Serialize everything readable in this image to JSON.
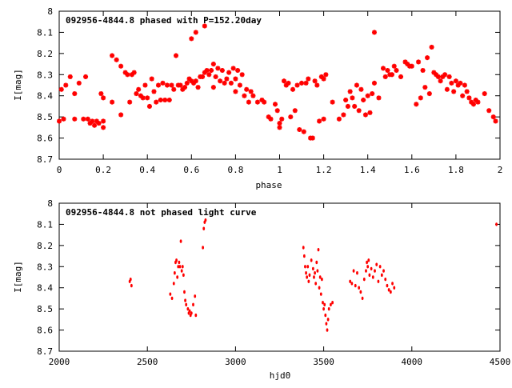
{
  "chart_data": [
    {
      "type": "scatter",
      "title": "092956-4844.8 phased with P=152.20day",
      "xlabel": "phase",
      "ylabel": "I[mag]",
      "xlim": [
        0,
        2
      ],
      "ylim": [
        8.7,
        8
      ],
      "y_inverted": true,
      "xticks": [
        0,
        0.2,
        0.4,
        0.6,
        0.8,
        1,
        1.2,
        1.4,
        1.6,
        1.8,
        2
      ],
      "xtick_labels": [
        "0",
        "0.2",
        "0.4",
        "0.6",
        "0.8",
        "1",
        "1.2",
        "1.4",
        "1.6",
        "1.8",
        "2"
      ],
      "yticks": [
        8,
        8.1,
        8.2,
        8.3,
        8.4,
        8.5,
        8.6,
        8.7
      ],
      "ytick_labels": [
        "8",
        "8.1",
        "8.2",
        "8.3",
        "8.4",
        "8.5",
        "8.6",
        "8.7"
      ],
      "grid": false,
      "marker_color": "#ff0000",
      "points": [
        [
          0.0,
          8.52
        ],
        [
          0.01,
          8.37
        ],
        [
          0.02,
          8.51
        ],
        [
          0.03,
          8.35
        ],
        [
          0.05,
          8.31
        ],
        [
          0.07,
          8.51
        ],
        [
          0.07,
          8.39
        ],
        [
          0.09,
          8.34
        ],
        [
          0.11,
          8.51
        ],
        [
          0.12,
          8.31
        ],
        [
          0.13,
          8.51
        ],
        [
          0.14,
          8.53
        ],
        [
          0.15,
          8.52
        ],
        [
          0.16,
          8.54
        ],
        [
          0.17,
          8.52
        ],
        [
          0.18,
          8.53
        ],
        [
          0.19,
          8.39
        ],
        [
          0.2,
          8.52
        ],
        [
          0.2,
          8.55
        ],
        [
          0.2,
          8.41
        ],
        [
          0.24,
          8.43
        ],
        [
          0.24,
          8.21
        ],
        [
          0.26,
          8.23
        ],
        [
          0.28,
          8.49
        ],
        [
          0.28,
          8.26
        ],
        [
          0.3,
          8.29
        ],
        [
          0.31,
          8.3
        ],
        [
          0.32,
          8.43
        ],
        [
          0.33,
          8.3
        ],
        [
          0.34,
          8.29
        ],
        [
          0.35,
          8.39
        ],
        [
          0.36,
          8.37
        ],
        [
          0.37,
          8.4
        ],
        [
          0.38,
          8.41
        ],
        [
          0.39,
          8.35
        ],
        [
          0.4,
          8.41
        ],
        [
          0.41,
          8.45
        ],
        [
          0.42,
          8.32
        ],
        [
          0.43,
          8.38
        ],
        [
          0.44,
          8.43
        ],
        [
          0.45,
          8.35
        ],
        [
          0.46,
          8.42
        ],
        [
          0.47,
          8.34
        ],
        [
          0.48,
          8.42
        ],
        [
          0.49,
          8.35
        ],
        [
          0.5,
          8.42
        ],
        [
          0.51,
          8.35
        ],
        [
          0.52,
          8.37
        ],
        [
          0.53,
          8.21
        ],
        [
          0.54,
          8.35
        ],
        [
          0.55,
          8.35
        ],
        [
          0.56,
          8.37
        ],
        [
          0.57,
          8.36
        ],
        [
          0.58,
          8.34
        ],
        [
          0.59,
          8.32
        ],
        [
          0.6,
          8.33
        ],
        [
          0.6,
          8.13
        ],
        [
          0.61,
          8.34
        ],
        [
          0.62,
          8.1
        ],
        [
          0.62,
          8.33
        ],
        [
          0.63,
          8.36
        ],
        [
          0.64,
          8.31
        ],
        [
          0.65,
          8.31
        ],
        [
          0.66,
          8.07
        ],
        [
          0.66,
          8.29
        ],
        [
          0.67,
          8.28
        ],
        [
          0.68,
          8.3
        ],
        [
          0.69,
          8.28
        ],
        [
          0.7,
          8.25
        ],
        [
          0.7,
          8.36
        ],
        [
          0.71,
          8.31
        ],
        [
          0.72,
          8.27
        ],
        [
          0.73,
          8.33
        ],
        [
          0.74,
          8.28
        ],
        [
          0.75,
          8.34
        ],
        [
          0.76,
          8.32
        ],
        [
          0.77,
          8.29
        ],
        [
          0.78,
          8.34
        ],
        [
          0.79,
          8.27
        ],
        [
          0.8,
          8.32
        ],
        [
          0.8,
          8.38
        ],
        [
          0.81,
          8.28
        ],
        [
          0.82,
          8.35
        ],
        [
          0.83,
          8.3
        ],
        [
          0.84,
          8.4
        ],
        [
          0.85,
          8.37
        ],
        [
          0.86,
          8.43
        ],
        [
          0.87,
          8.38
        ],
        [
          0.88,
          8.4
        ],
        [
          0.9,
          8.43
        ],
        [
          0.92,
          8.42
        ],
        [
          0.93,
          8.43
        ],
        [
          0.95,
          8.5
        ],
        [
          0.96,
          8.51
        ],
        [
          0.98,
          8.44
        ],
        [
          0.99,
          8.47
        ],
        [
          1.0,
          8.53
        ],
        [
          1.0,
          8.55
        ],
        [
          1.01,
          8.51
        ],
        [
          1.02,
          8.33
        ],
        [
          1.03,
          8.35
        ],
        [
          1.04,
          8.34
        ],
        [
          1.05,
          8.5
        ],
        [
          1.06,
          8.37
        ],
        [
          1.07,
          8.47
        ],
        [
          1.08,
          8.35
        ],
        [
          1.09,
          8.56
        ],
        [
          1.1,
          8.34
        ],
        [
          1.11,
          8.57
        ],
        [
          1.12,
          8.34
        ],
        [
          1.13,
          8.32
        ],
        [
          1.14,
          8.6
        ],
        [
          1.15,
          8.6
        ],
        [
          1.16,
          8.33
        ],
        [
          1.17,
          8.35
        ],
        [
          1.18,
          8.52
        ],
        [
          1.19,
          8.31
        ],
        [
          1.2,
          8.51
        ],
        [
          1.2,
          8.32
        ],
        [
          1.21,
          8.3
        ],
        [
          1.24,
          8.43
        ],
        [
          1.27,
          8.51
        ],
        [
          1.29,
          8.49
        ],
        [
          1.3,
          8.42
        ],
        [
          1.31,
          8.45
        ],
        [
          1.32,
          8.38
        ],
        [
          1.33,
          8.41
        ],
        [
          1.34,
          8.45
        ],
        [
          1.35,
          8.35
        ],
        [
          1.36,
          8.47
        ],
        [
          1.37,
          8.37
        ],
        [
          1.38,
          8.42
        ],
        [
          1.39,
          8.49
        ],
        [
          1.4,
          8.4
        ],
        [
          1.41,
          8.48
        ],
        [
          1.42,
          8.39
        ],
        [
          1.43,
          8.34
        ],
        [
          1.43,
          8.1
        ],
        [
          1.45,
          8.41
        ],
        [
          1.47,
          8.27
        ],
        [
          1.48,
          8.31
        ],
        [
          1.49,
          8.28
        ],
        [
          1.5,
          8.3
        ],
        [
          1.51,
          8.3
        ],
        [
          1.52,
          8.26
        ],
        [
          1.53,
          8.28
        ],
        [
          1.55,
          8.31
        ],
        [
          1.57,
          8.24
        ],
        [
          1.58,
          8.25
        ],
        [
          1.59,
          8.26
        ],
        [
          1.6,
          8.26
        ],
        [
          1.62,
          8.44
        ],
        [
          1.63,
          8.24
        ],
        [
          1.64,
          8.41
        ],
        [
          1.65,
          8.28
        ],
        [
          1.66,
          8.36
        ],
        [
          1.67,
          8.22
        ],
        [
          1.68,
          8.39
        ],
        [
          1.69,
          8.17
        ],
        [
          1.7,
          8.29
        ],
        [
          1.71,
          8.3
        ],
        [
          1.72,
          8.31
        ],
        [
          1.73,
          8.33
        ],
        [
          1.74,
          8.31
        ],
        [
          1.75,
          8.3
        ],
        [
          1.76,
          8.37
        ],
        [
          1.77,
          8.31
        ],
        [
          1.78,
          8.34
        ],
        [
          1.79,
          8.38
        ],
        [
          1.8,
          8.33
        ],
        [
          1.81,
          8.35
        ],
        [
          1.82,
          8.34
        ],
        [
          1.83,
          8.4
        ],
        [
          1.84,
          8.35
        ],
        [
          1.85,
          8.38
        ],
        [
          1.86,
          8.41
        ],
        [
          1.87,
          8.43
        ],
        [
          1.88,
          8.44
        ],
        [
          1.89,
          8.42
        ],
        [
          1.9,
          8.43
        ],
        [
          1.93,
          8.39
        ],
        [
          1.95,
          8.47
        ],
        [
          1.97,
          8.5
        ],
        [
          1.98,
          8.52
        ]
      ]
    },
    {
      "type": "scatter",
      "title": "092956-4844.8 not phased light curve",
      "xlabel": "hjd0",
      "ylabel": "I[mag]",
      "xlim": [
        2000,
        4500
      ],
      "ylim": [
        8.7,
        8
      ],
      "y_inverted": true,
      "xticks": [
        2000,
        2500,
        3000,
        3500,
        4000,
        4500
      ],
      "xtick_labels": [
        "2000",
        "2500",
        "3000",
        "3500",
        "4000",
        "4500"
      ],
      "yticks": [
        8,
        8.1,
        8.2,
        8.3,
        8.4,
        8.5,
        8.6,
        8.7
      ],
      "ytick_labels": [
        "8",
        "8.1",
        "8.2",
        "8.3",
        "8.4",
        "8.5",
        "8.6",
        "8.7"
      ],
      "grid": false,
      "marker_color": "#ff0000",
      "points": [
        [
          2400,
          8.37
        ],
        [
          2405,
          8.36
        ],
        [
          2410,
          8.39
        ],
        [
          2630,
          8.43
        ],
        [
          2640,
          8.45
        ],
        [
          2650,
          8.38
        ],
        [
          2655,
          8.33
        ],
        [
          2660,
          8.28
        ],
        [
          2665,
          8.27
        ],
        [
          2670,
          8.35
        ],
        [
          2675,
          8.3
        ],
        [
          2680,
          8.28
        ],
        [
          2685,
          8.3
        ],
        [
          2690,
          8.18
        ],
        [
          2695,
          8.32
        ],
        [
          2700,
          8.3
        ],
        [
          2705,
          8.34
        ],
        [
          2710,
          8.42
        ],
        [
          2715,
          8.46
        ],
        [
          2720,
          8.48
        ],
        [
          2730,
          8.5
        ],
        [
          2735,
          8.52
        ],
        [
          2740,
          8.51
        ],
        [
          2745,
          8.53
        ],
        [
          2750,
          8.52
        ],
        [
          2760,
          8.48
        ],
        [
          2770,
          8.44
        ],
        [
          2775,
          8.53
        ],
        [
          2815,
          8.21
        ],
        [
          2820,
          8.12
        ],
        [
          2825,
          8.09
        ],
        [
          2830,
          8.08
        ],
        [
          3385,
          8.21
        ],
        [
          3390,
          8.25
        ],
        [
          3395,
          8.3
        ],
        [
          3400,
          8.33
        ],
        [
          3405,
          8.35
        ],
        [
          3410,
          8.3
        ],
        [
          3415,
          8.37
        ],
        [
          3420,
          8.34
        ],
        [
          3430,
          8.27
        ],
        [
          3440,
          8.31
        ],
        [
          3445,
          8.35
        ],
        [
          3450,
          8.33
        ],
        [
          3455,
          8.38
        ],
        [
          3460,
          8.28
        ],
        [
          3465,
          8.32
        ],
        [
          3470,
          8.22
        ],
        [
          3475,
          8.4
        ],
        [
          3480,
          8.35
        ],
        [
          3485,
          8.43
        ],
        [
          3490,
          8.36
        ],
        [
          3495,
          8.47
        ],
        [
          3500,
          8.5
        ],
        [
          3505,
          8.48
        ],
        [
          3510,
          8.53
        ],
        [
          3515,
          8.57
        ],
        [
          3520,
          8.6
        ],
        [
          3525,
          8.55
        ],
        [
          3530,
          8.5
        ],
        [
          3540,
          8.48
        ],
        [
          3550,
          8.47
        ],
        [
          3650,
          8.37
        ],
        [
          3660,
          8.38
        ],
        [
          3670,
          8.32
        ],
        [
          3680,
          8.39
        ],
        [
          3690,
          8.33
        ],
        [
          3700,
          8.4
        ],
        [
          3710,
          8.42
        ],
        [
          3720,
          8.45
        ],
        [
          3730,
          8.36
        ],
        [
          3740,
          8.32
        ],
        [
          3745,
          8.28
        ],
        [
          3750,
          8.3
        ],
        [
          3755,
          8.27
        ],
        [
          3760,
          8.34
        ],
        [
          3770,
          8.31
        ],
        [
          3780,
          8.35
        ],
        [
          3790,
          8.32
        ],
        [
          3800,
          8.29
        ],
        [
          3810,
          8.37
        ],
        [
          3820,
          8.3
        ],
        [
          3830,
          8.34
        ],
        [
          3840,
          8.32
        ],
        [
          3850,
          8.36
        ],
        [
          3860,
          8.39
        ],
        [
          3870,
          8.41
        ],
        [
          3880,
          8.42
        ],
        [
          3890,
          8.38
        ],
        [
          3900,
          8.4
        ],
        [
          4480,
          8.1
        ]
      ]
    }
  ]
}
